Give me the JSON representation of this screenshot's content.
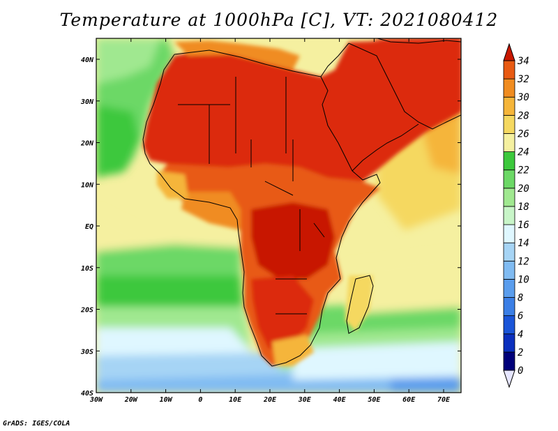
{
  "title": "Temperature at 1000hPa [C], VT: 2021080412",
  "credit": "GrADS: IGES/COLA",
  "map": {
    "lon_range": [
      -30,
      75
    ],
    "lat_range": [
      -40,
      45
    ],
    "lat_ticks": [
      "40N",
      "30N",
      "20N",
      "10N",
      "EQ",
      "10S",
      "20S",
      "30S",
      "40S"
    ],
    "lon_ticks": [
      "30W",
      "20W",
      "10W",
      "0",
      "10E",
      "20E",
      "30E",
      "40E",
      "50E",
      "60E",
      "70E"
    ]
  },
  "colorbar": {
    "levels": [
      "0",
      "2",
      "4",
      "6",
      "8",
      "10",
      "12",
      "14",
      "16",
      "18",
      "20",
      "22",
      "24",
      "26",
      "28",
      "30",
      "32",
      "34"
    ],
    "colors": [
      "#00007a",
      "#0b2fbd",
      "#1a55d8",
      "#3b7fe6",
      "#5a9ded",
      "#80bbf2",
      "#a6d4f5",
      "#dff7ff",
      "#c8f5c8",
      "#a0e890",
      "#6cd866",
      "#3cc83c",
      "#f5f0a0",
      "#f5d860",
      "#f5b53a",
      "#f08c20",
      "#e85a12",
      "#dc2a08",
      "#c81800"
    ]
  }
}
